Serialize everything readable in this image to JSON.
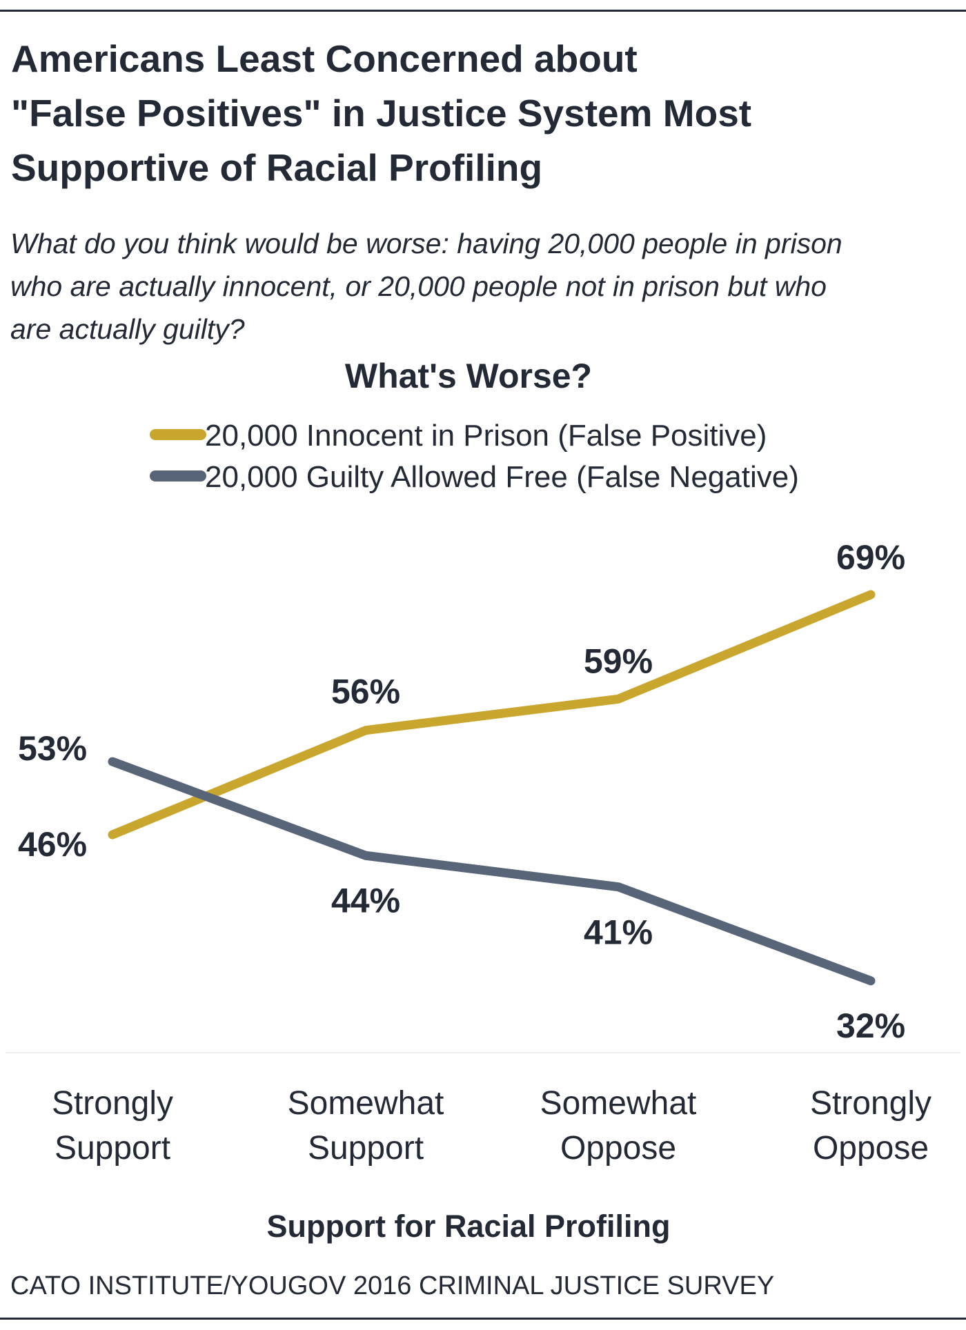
{
  "title_lines": [
    "Americans Least Concerned about",
    "\"False Positives\" in Justice System Most",
    "Supportive of Racial Profiling"
  ],
  "subtitle_lines": [
    "What do you think would be worse: having 20,000 people in prison",
    "who are actually innocent, or 20,000 people not in prison but who",
    "are actually guilty?"
  ],
  "source": "CATO INSTITUTE/YOUGOV 2016 CRIMINAL JUSTICE SURVEY",
  "chart_data": {
    "type": "line",
    "legend_title": "What's Worse?",
    "legend_placement": "top-left",
    "categories": [
      [
        "Strongly",
        "Support"
      ],
      [
        "Somewhat",
        "Support"
      ],
      [
        "Somewhat",
        "Oppose"
      ],
      [
        "Strongly",
        "Oppose"
      ]
    ],
    "xlabel": "Support for Racial Profiling",
    "ylabel": "",
    "unit": "%",
    "grid": false,
    "series": [
      {
        "name": "20,000 Innocent in Prison (False Positive)",
        "color": "#c9a62e",
        "values": [
          46,
          56,
          59,
          69
        ],
        "labels": [
          "46%",
          "56%",
          "59%",
          "69%"
        ]
      },
      {
        "name": "20,000 Guilty Allowed Free (False Negative)",
        "color": "#586478",
        "values": [
          53,
          44,
          41,
          32
        ],
        "labels": [
          "53%",
          "44%",
          "41%",
          "32%"
        ]
      }
    ]
  }
}
